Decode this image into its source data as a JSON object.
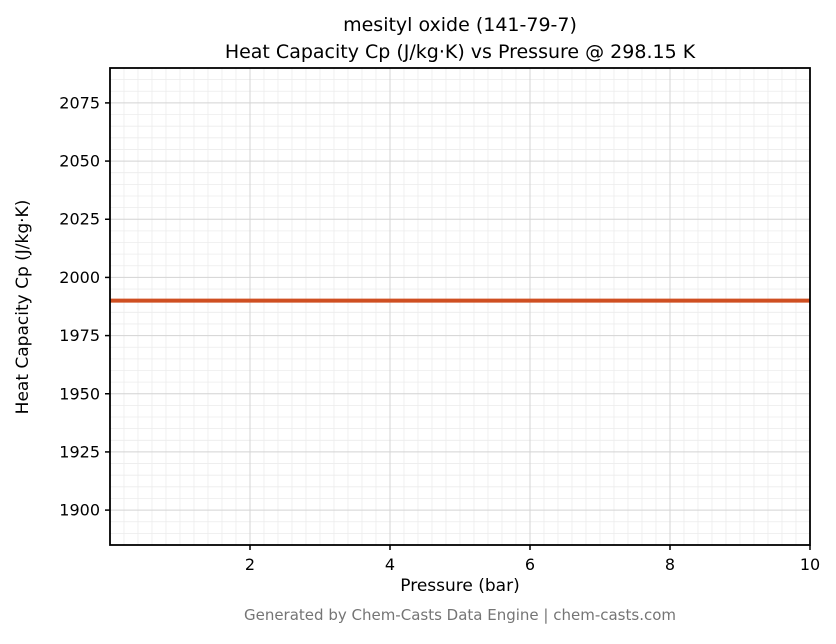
{
  "figure": {
    "title_line1": "mesityl oxide (141-79-7)",
    "title_line2": "Heat Capacity Cp (J/kg·K) vs Pressure @ 298.15 K",
    "footer": "Generated by Chem-Casts Data Engine | chem-casts.com"
  },
  "chart_data": {
    "type": "line",
    "title": "mesityl oxide (141-79-7)",
    "subtitle": "Heat Capacity Cp (J/kg·K) vs Pressure @ 298.15 K",
    "xlabel": "Pressure (bar)",
    "ylabel": "Heat Capacity Cp (J/kg·K)",
    "xlim": [
      0,
      10
    ],
    "ylim": [
      1885,
      2090
    ],
    "x_ticks": [
      2,
      4,
      6,
      8,
      10
    ],
    "y_ticks": [
      1900,
      1925,
      1950,
      1975,
      2000,
      2025,
      2050,
      2075
    ],
    "grid": {
      "major": true,
      "minor": true,
      "minor_x_step": 0.2,
      "minor_y_step": 5,
      "major_color": "#d4d4d4",
      "minor_color": "#ececec"
    },
    "legend": "none",
    "series": [
      {
        "name": "Heat Capacity Cp",
        "x": [
          0,
          10
        ],
        "y": [
          1990,
          1990
        ],
        "color": "#cf4f22",
        "linewidth": 4
      }
    ]
  }
}
